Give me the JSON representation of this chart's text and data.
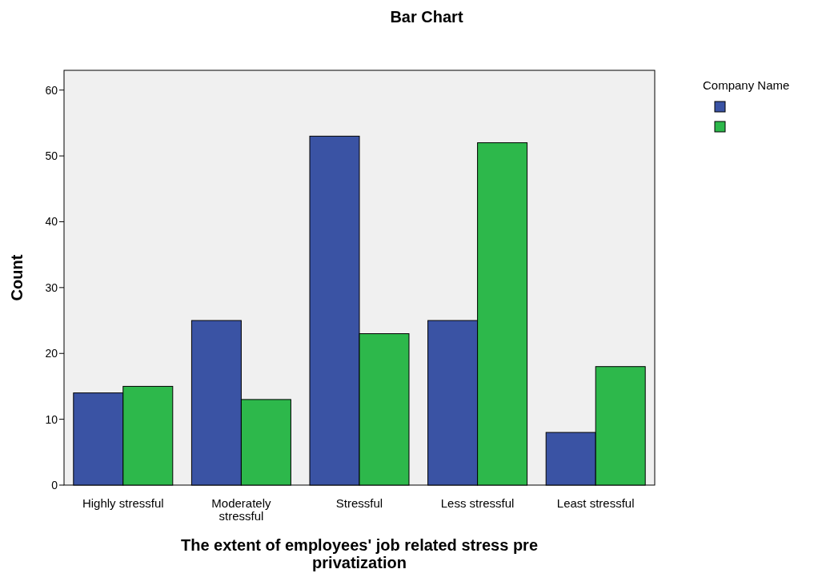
{
  "chart_data": {
    "type": "bar",
    "title": "Bar Chart",
    "xlabel": "The extent of employees' job related stress pre privatization",
    "ylabel": "Count",
    "legend_title": "Company Name",
    "categories": [
      "Highly stressful",
      "Moderately stressful",
      "Stressful",
      "Less stressful",
      "Least stressful"
    ],
    "series": [
      {
        "color": "#3a53a4",
        "values": [
          14,
          25,
          53,
          25,
          8
        ]
      },
      {
        "color": "#2db84b",
        "values": [
          15,
          13,
          23,
          52,
          18
        ]
      }
    ],
    "ylim": [
      0,
      63
    ],
    "yticks": [
      0,
      10,
      20,
      30,
      40,
      50,
      60
    ]
  }
}
